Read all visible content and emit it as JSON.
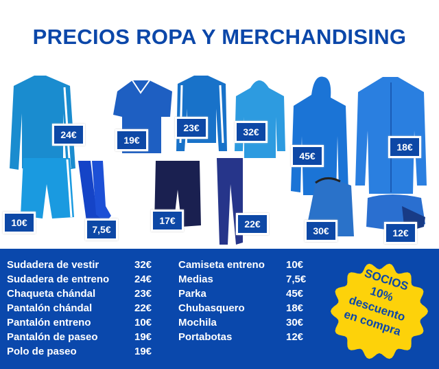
{
  "title": "PRECIOS ROPA Y MERCHANDISING",
  "colors": {
    "primary": "#0a48ac",
    "badge": "#fdd20a",
    "garment": "#1f8fd6"
  },
  "tags": [
    {
      "product": "sudadera-entreno",
      "price": "24€"
    },
    {
      "product": "polo-paseo",
      "price": "19€"
    },
    {
      "product": "chaqueta-chandal",
      "price": "23€"
    },
    {
      "product": "sudadera-vestir",
      "price": "32€"
    },
    {
      "product": "parka",
      "price": "45€"
    },
    {
      "product": "chubasquero",
      "price": "18€"
    },
    {
      "product": "pantalon-entreno",
      "price": "10€"
    },
    {
      "product": "medias",
      "price": "7,5€"
    },
    {
      "product": "pantalon-paseo-corto",
      "price": "17€"
    },
    {
      "product": "pantalon-chandal",
      "price": "22€"
    },
    {
      "product": "mochila",
      "price": "30€"
    },
    {
      "product": "portabotas",
      "price": "12€"
    }
  ],
  "list_left": [
    {
      "name": "Sudadera de vestir",
      "price": "32€"
    },
    {
      "name": "Sudadera de entreno",
      "price": "24€"
    },
    {
      "name": "Chaqueta chándal",
      "price": "23€"
    },
    {
      "name": "Pantalón chándal",
      "price": "22€"
    },
    {
      "name": "Pantalón entreno",
      "price": "10€"
    },
    {
      "name": "Pantalón de paseo",
      "price": "19€"
    },
    {
      "name": "Polo de paseo",
      "price": "19€"
    }
  ],
  "list_right": [
    {
      "name": "Camiseta entreno",
      "price": "10€"
    },
    {
      "name": "Medias",
      "price": "7,5€"
    },
    {
      "name": "Parka",
      "price": "45€"
    },
    {
      "name": "Chubasquero",
      "price": "18€"
    },
    {
      "name": "Mochila",
      "price": "30€"
    },
    {
      "name": "Portabotas",
      "price": "12€"
    }
  ],
  "badge": {
    "line1": "SOCIOS",
    "line2": "10%",
    "line3": "descuento",
    "line4": "en compra"
  }
}
